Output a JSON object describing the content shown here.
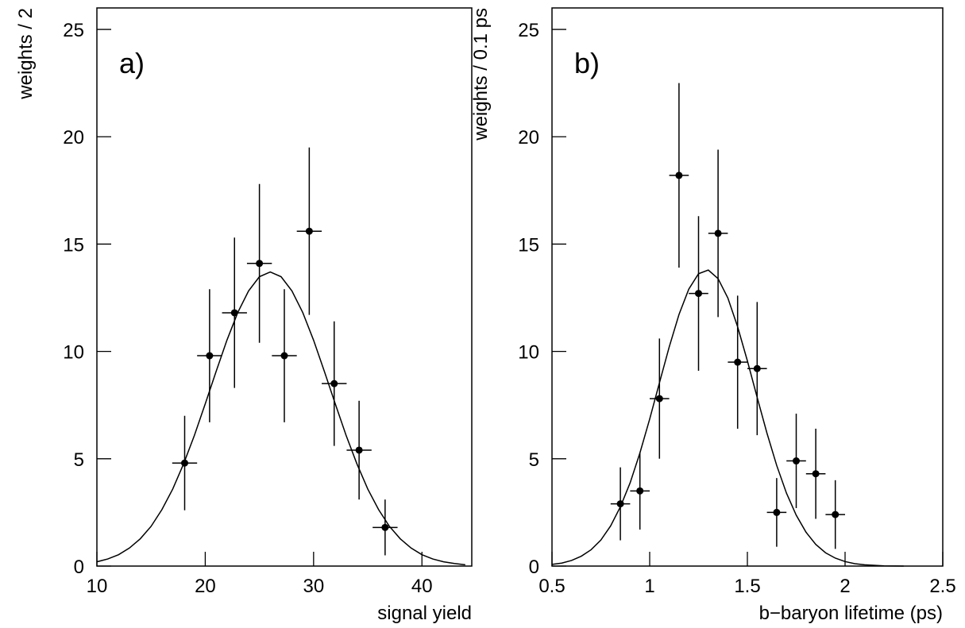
{
  "chart_data": [
    {
      "type": "errorbar",
      "annotation": "a)",
      "xlabel": "signal yield",
      "ylabel": "weights / 2",
      "x": [
        18.1,
        20.4,
        22.7,
        25.0,
        27.3,
        29.6,
        31.9,
        34.2,
        36.6
      ],
      "xerr": 1.15,
      "values": [
        4.8,
        9.8,
        11.8,
        14.1,
        9.8,
        15.6,
        8.5,
        5.4,
        1.8
      ],
      "yerr": [
        2.2,
        3.1,
        3.5,
        3.7,
        3.1,
        3.9,
        2.9,
        2.3,
        1.3
      ],
      "fit": {
        "x": [
          10,
          11,
          12,
          13,
          14,
          15,
          16,
          17,
          18,
          19,
          20,
          21,
          22,
          23,
          24,
          25,
          26,
          27,
          28,
          29,
          30,
          31,
          32,
          33,
          34,
          35,
          36,
          37,
          38,
          39,
          40,
          41,
          42,
          43,
          44
        ],
        "values": [
          0.2,
          0.33,
          0.53,
          0.84,
          1.27,
          1.85,
          2.63,
          3.59,
          4.76,
          6.09,
          7.56,
          9.06,
          10.52,
          11.81,
          12.82,
          13.48,
          13.7,
          13.48,
          12.82,
          11.81,
          10.52,
          9.06,
          7.56,
          6.09,
          4.76,
          3.59,
          2.63,
          1.85,
          1.27,
          0.84,
          0.53,
          0.33,
          0.2,
          0.12,
          0.06
        ]
      },
      "xlim": [
        10,
        44.6
      ],
      "ylim": [
        0,
        26
      ],
      "xticks": [
        10,
        20,
        30,
        40
      ],
      "yticks": [
        0,
        5,
        10,
        15,
        20,
        25
      ],
      "color": "#000000"
    },
    {
      "type": "errorbar",
      "annotation": "b)",
      "xlabel": "b−baryon lifetime (ps)",
      "ylabel": "weights / 0.1 ps",
      "x": [
        0.85,
        0.95,
        1.05,
        1.15,
        1.25,
        1.35,
        1.45,
        1.55,
        1.65,
        1.75,
        1.85,
        1.95
      ],
      "xerr": 0.05,
      "values": [
        2.9,
        3.5,
        7.8,
        18.2,
        12.7,
        15.5,
        9.5,
        9.2,
        2.5,
        4.9,
        4.3,
        2.4
      ],
      "yerr": [
        1.7,
        1.8,
        2.8,
        4.3,
        3.6,
        3.9,
        3.1,
        3.1,
        1.6,
        2.2,
        2.1,
        1.6
      ],
      "fit": {
        "x": [
          0.5,
          0.55,
          0.6,
          0.65,
          0.7,
          0.75,
          0.8,
          0.85,
          0.9,
          0.95,
          1.0,
          1.05,
          1.1,
          1.15,
          1.2,
          1.25,
          1.3,
          1.35,
          1.4,
          1.45,
          1.5,
          1.55,
          1.6,
          1.65,
          1.7,
          1.75,
          1.8,
          1.85,
          1.9,
          1.95,
          2.0,
          2.05,
          2.1,
          2.2,
          2.3
        ],
        "values": [
          0.08,
          0.14,
          0.26,
          0.46,
          0.76,
          1.21,
          1.87,
          2.76,
          3.88,
          5.27,
          6.85,
          8.54,
          10.21,
          11.72,
          12.9,
          13.62,
          13.79,
          13.39,
          12.49,
          11.15,
          9.56,
          7.86,
          6.2,
          4.69,
          3.4,
          2.37,
          1.58,
          1.01,
          0.62,
          0.37,
          0.21,
          0.11,
          0.06,
          0.01,
          0
        ]
      },
      "xlim": [
        0.5,
        2.5
      ],
      "ylim": [
        0,
        26
      ],
      "xticks": [
        {
          "value": 0.5,
          "label": "0.5"
        },
        1,
        1.5,
        2,
        2.5
      ],
      "yticks": [
        0,
        5,
        10,
        15,
        20,
        25
      ],
      "color": "#000000"
    }
  ]
}
